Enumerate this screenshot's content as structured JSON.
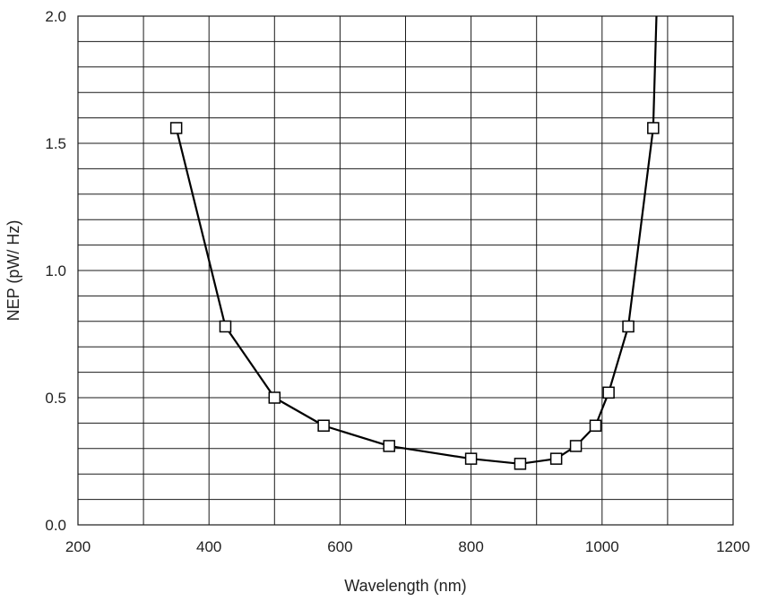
{
  "chart_data": {
    "type": "line",
    "title": "",
    "xlabel": "Wavelength (nm)",
    "ylabel": "NEP (pW/ Hz)",
    "xlim": [
      200,
      1200
    ],
    "ylim": [
      0,
      2.0
    ],
    "x_major_ticks": [
      200,
      400,
      600,
      800,
      1000,
      1200
    ],
    "x_tick_labels": [
      "200",
      "400",
      "600",
      "800",
      "1000",
      "1200"
    ],
    "x_minor_step": 100,
    "y_major_ticks": [
      0.0,
      0.5,
      1.0,
      1.5,
      2.0
    ],
    "y_tick_labels": [
      "0.0",
      "0.5",
      "1.0",
      "1.5",
      "2.0"
    ],
    "y_minor_step": 0.1,
    "grid": true,
    "legend": "none",
    "series": [
      {
        "x": [
          350,
          425,
          500,
          575,
          675,
          800,
          875,
          930,
          960,
          990,
          1010,
          1040,
          1078
        ],
        "y": [
          1.56,
          0.78,
          0.5,
          0.39,
          0.31,
          0.26,
          0.24,
          0.26,
          0.31,
          0.39,
          0.52,
          0.78,
          1.56
        ],
        "marker": "square-open",
        "color": "#000000"
      }
    ],
    "curve_extension": {
      "x": [
        1078,
        1083
      ],
      "y": [
        1.56,
        2.0
      ]
    }
  }
}
